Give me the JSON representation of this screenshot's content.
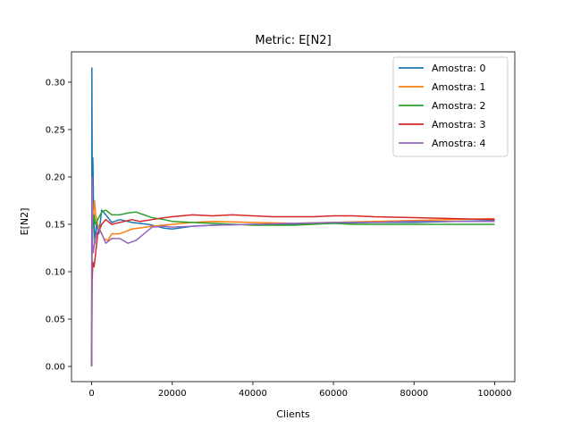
{
  "chart_data": {
    "type": "line",
    "title": "Metric: E[N2]",
    "xlabel": "Clients",
    "ylabel": "E[N2]",
    "xlim": [
      -5000,
      105000
    ],
    "ylim": [
      -0.016,
      0.332
    ],
    "xticks": [
      0,
      20000,
      40000,
      60000,
      80000,
      100000
    ],
    "xtick_labels": [
      "0",
      "20000",
      "40000",
      "60000",
      "80000",
      "100000"
    ],
    "yticks": [
      0.0,
      0.05,
      0.1,
      0.15,
      0.2,
      0.25,
      0.3
    ],
    "ytick_labels": [
      "0.00",
      "0.05",
      "0.10",
      "0.15",
      "0.20",
      "0.25",
      "0.30"
    ],
    "grid": false,
    "legend_position": "top-right",
    "series": [
      {
        "name": "Amostra: 0",
        "color": "#1f77b4",
        "points": [
          [
            0,
            0.0
          ],
          [
            60,
            0.315
          ],
          [
            150,
            0.2
          ],
          [
            300,
            0.22
          ],
          [
            500,
            0.16
          ],
          [
            800,
            0.13
          ],
          [
            1200,
            0.15
          ],
          [
            1800,
            0.14
          ],
          [
            2500,
            0.165
          ],
          [
            3500,
            0.16
          ],
          [
            5000,
            0.152
          ],
          [
            7000,
            0.155
          ],
          [
            10000,
            0.152
          ],
          [
            14000,
            0.15
          ],
          [
            18000,
            0.146
          ],
          [
            20000,
            0.145
          ],
          [
            25000,
            0.148
          ],
          [
            30000,
            0.149
          ],
          [
            40000,
            0.15
          ],
          [
            50000,
            0.15
          ],
          [
            60000,
            0.151
          ],
          [
            70000,
            0.152
          ],
          [
            80000,
            0.152
          ],
          [
            90000,
            0.153
          ],
          [
            100000,
            0.154
          ]
        ]
      },
      {
        "name": "Amostra: 1",
        "color": "#ff7f0e",
        "points": [
          [
            0,
            0.0
          ],
          [
            80,
            0.14
          ],
          [
            200,
            0.13
          ],
          [
            400,
            0.16
          ],
          [
            700,
            0.175
          ],
          [
            1000,
            0.16
          ],
          [
            1500,
            0.15
          ],
          [
            2000,
            0.145
          ],
          [
            3000,
            0.135
          ],
          [
            4000,
            0.133
          ],
          [
            5000,
            0.14
          ],
          [
            7000,
            0.14
          ],
          [
            10000,
            0.145
          ],
          [
            15000,
            0.148
          ],
          [
            20000,
            0.15
          ],
          [
            25000,
            0.152
          ],
          [
            30000,
            0.153
          ],
          [
            40000,
            0.152
          ],
          [
            50000,
            0.151
          ],
          [
            60000,
            0.152
          ],
          [
            70000,
            0.153
          ],
          [
            80000,
            0.154
          ],
          [
            90000,
            0.155
          ],
          [
            100000,
            0.156
          ]
        ]
      },
      {
        "name": "Amostra: 2",
        "color": "#2ca02c",
        "points": [
          [
            0,
            0.0
          ],
          [
            100,
            0.12
          ],
          [
            300,
            0.145
          ],
          [
            600,
            0.16
          ],
          [
            1000,
            0.15
          ],
          [
            1500,
            0.155
          ],
          [
            2500,
            0.163
          ],
          [
            3500,
            0.165
          ],
          [
            5000,
            0.16
          ],
          [
            7000,
            0.16
          ],
          [
            9000,
            0.162
          ],
          [
            11000,
            0.163
          ],
          [
            13000,
            0.16
          ],
          [
            15000,
            0.157
          ],
          [
            18000,
            0.155
          ],
          [
            20000,
            0.153
          ],
          [
            25000,
            0.152
          ],
          [
            30000,
            0.151
          ],
          [
            40000,
            0.149
          ],
          [
            50000,
            0.149
          ],
          [
            60000,
            0.151
          ],
          [
            65000,
            0.15
          ],
          [
            70000,
            0.15
          ],
          [
            80000,
            0.15
          ],
          [
            90000,
            0.15
          ],
          [
            100000,
            0.15
          ]
        ]
      },
      {
        "name": "Amostra: 3",
        "color": "#d62728",
        "points": [
          [
            0,
            0.0
          ],
          [
            120,
            0.09
          ],
          [
            300,
            0.11
          ],
          [
            600,
            0.105
          ],
          [
            1000,
            0.12
          ],
          [
            1500,
            0.14
          ],
          [
            2500,
            0.15
          ],
          [
            3500,
            0.155
          ],
          [
            5000,
            0.15
          ],
          [
            7000,
            0.152
          ],
          [
            10000,
            0.155
          ],
          [
            12000,
            0.153
          ],
          [
            15000,
            0.155
          ],
          [
            18000,
            0.157
          ],
          [
            20000,
            0.158
          ],
          [
            25000,
            0.16
          ],
          [
            30000,
            0.159
          ],
          [
            35000,
            0.16
          ],
          [
            40000,
            0.159
          ],
          [
            45000,
            0.158
          ],
          [
            50000,
            0.158
          ],
          [
            55000,
            0.158
          ],
          [
            60000,
            0.159
          ],
          [
            65000,
            0.159
          ],
          [
            70000,
            0.158
          ],
          [
            80000,
            0.157
          ],
          [
            90000,
            0.156
          ],
          [
            100000,
            0.155
          ]
        ]
      },
      {
        "name": "Amostra: 4",
        "color": "#9467bd",
        "points": [
          [
            0,
            0.0
          ],
          [
            60,
            0.2
          ],
          [
            200,
            0.13
          ],
          [
            400,
            0.12
          ],
          [
            700,
            0.13
          ],
          [
            1200,
            0.14
          ],
          [
            1800,
            0.145
          ],
          [
            2500,
            0.14
          ],
          [
            3500,
            0.13
          ],
          [
            5000,
            0.135
          ],
          [
            7000,
            0.135
          ],
          [
            9000,
            0.13
          ],
          [
            11000,
            0.133
          ],
          [
            13000,
            0.14
          ],
          [
            15000,
            0.147
          ],
          [
            18000,
            0.148
          ],
          [
            20000,
            0.147
          ],
          [
            25000,
            0.148
          ],
          [
            30000,
            0.149
          ],
          [
            40000,
            0.15
          ],
          [
            50000,
            0.151
          ],
          [
            60000,
            0.152
          ],
          [
            70000,
            0.152
          ],
          [
            80000,
            0.153
          ],
          [
            90000,
            0.153
          ],
          [
            100000,
            0.153
          ]
        ]
      }
    ]
  }
}
